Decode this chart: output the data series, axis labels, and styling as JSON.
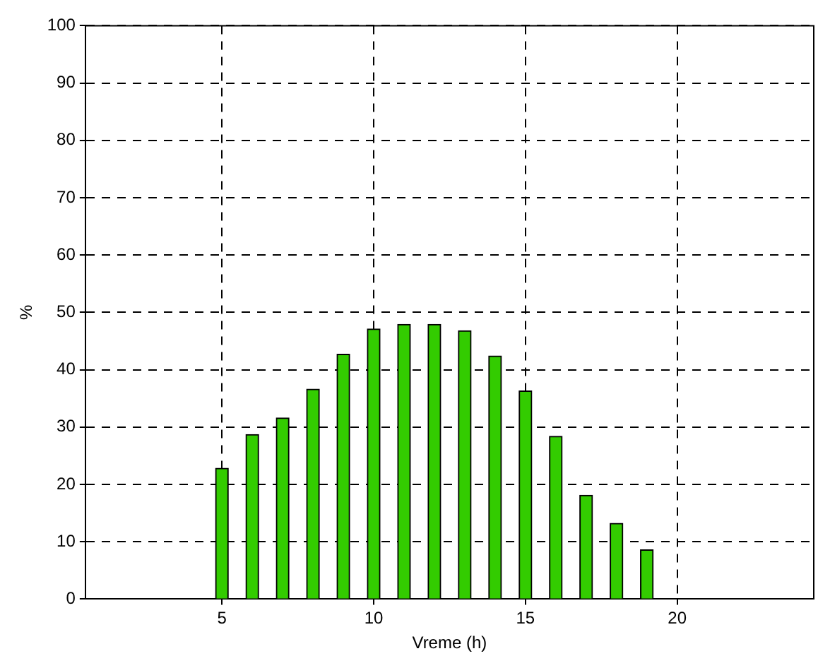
{
  "chart_data": {
    "type": "bar",
    "xlabel": "Vreme (h)",
    "ylabel": "%",
    "x": [
      5,
      6,
      7,
      8,
      9,
      10,
      11,
      12,
      13,
      14,
      15,
      16,
      17,
      18,
      19
    ],
    "values": [
      22.8,
      28.7,
      31.6,
      36.6,
      42.7,
      47.1,
      47.9,
      47.9,
      46.8,
      42.4,
      36.3,
      28.4,
      18.1,
      13.2,
      8.6
    ],
    "color": "#33cc00",
    "xlim": [
      0.5,
      24.5
    ],
    "xticks": [
      5,
      10,
      15,
      20
    ],
    "ylim": [
      0,
      100
    ],
    "yticks": [
      0,
      10,
      20,
      30,
      40,
      50,
      60,
      70,
      80,
      90,
      100
    ],
    "grid": true,
    "legend": false
  }
}
